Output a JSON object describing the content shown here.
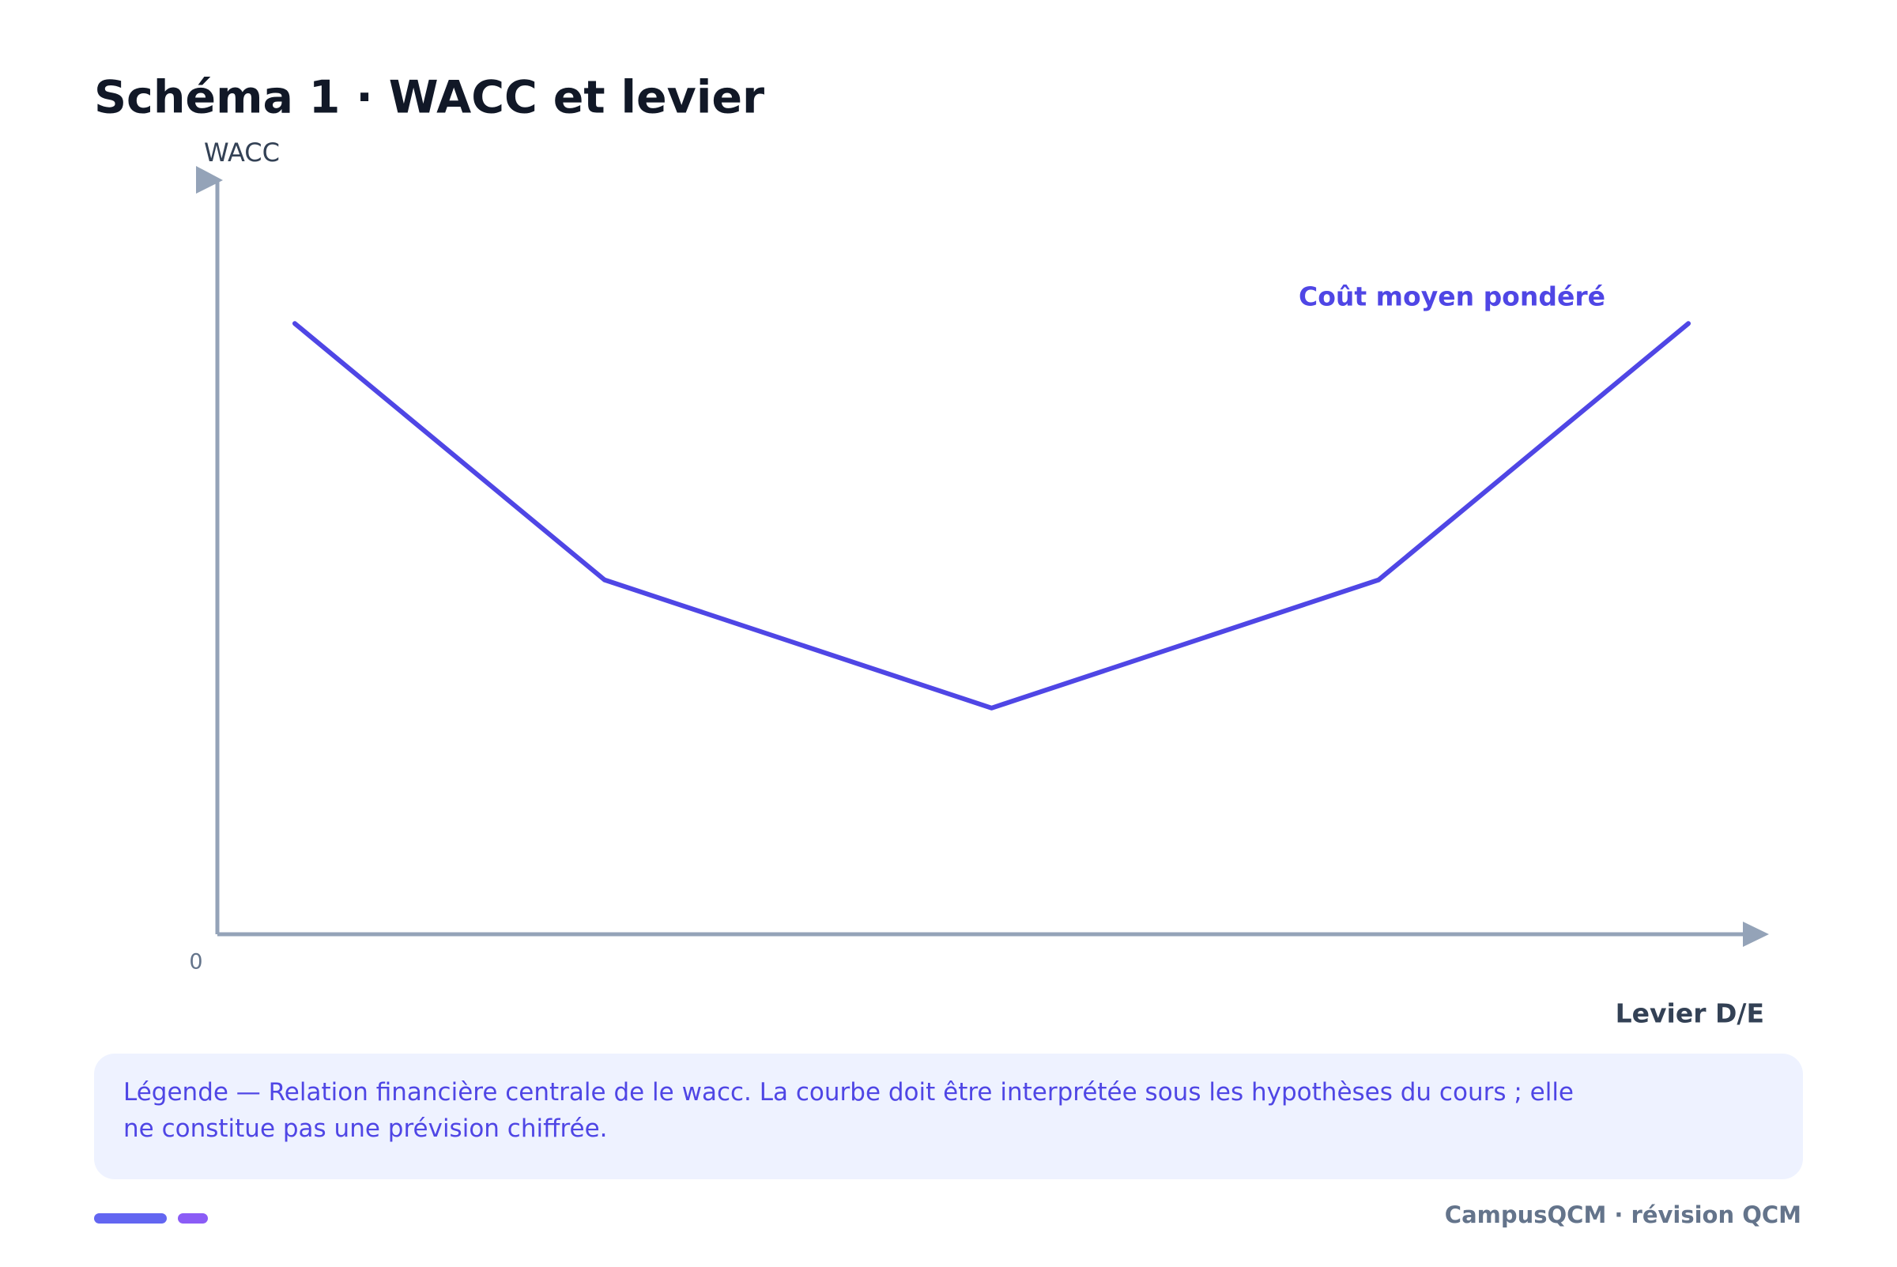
{
  "chart_data": {
    "type": "line",
    "title": "Schéma 1 · WACC et levier",
    "x_label": "Levier D/E",
    "y_label": "WACC",
    "x": [
      5,
      25,
      50,
      75,
      95
    ],
    "series": [
      {
        "name": "Coût moyen pondéré",
        "color": "#4f46e5",
        "values": [
          81,
          47,
          30,
          47,
          81
        ]
      }
    ],
    "xlim": [
      0,
      100
    ],
    "ylim": [
      0,
      100
    ],
    "yticks": [
      0
    ],
    "grid": false
  },
  "caption": "Légende — Relation financière centrale de le wacc. La courbe doit être interprétée sous les hypothèses du cours ; elle ne constitue pas une prévision chiffrée.",
  "footer": "CampusQCM · révision QCM"
}
